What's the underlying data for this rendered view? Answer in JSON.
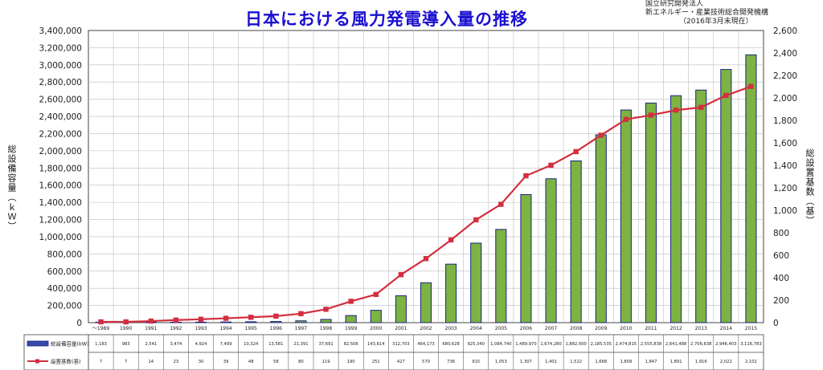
{
  "header": {
    "title": "日本における風力発電導入量の推移",
    "source_line1": "国立研究開発法人",
    "source_line2": "新エネルギー・産業技術総合開発機構",
    "source_date": "（2016年3月末現在）"
  },
  "chart_data": {
    "type": "bar",
    "title": "日本における風力発電導入量の推移",
    "ylabel": "総設備容量（ｋＷ）",
    "y2label": "総設置基数（基）",
    "ylim": [
      0,
      3400000
    ],
    "y2lim": [
      0,
      2600
    ],
    "yticks": [
      "0",
      "200,000",
      "400,000",
      "600,000",
      "800,000",
      "1,000,000",
      "1,200,000",
      "1,400,000",
      "1,600,000",
      "1,800,000",
      "2,000,000",
      "2,200,000",
      "2,400,000",
      "2,600,000",
      "2,800,000",
      "3,000,000",
      "3,200,000",
      "3,400,000"
    ],
    "y2ticks": [
      "0",
      "200",
      "400",
      "600",
      "800",
      "1,000",
      "1,200",
      "1,400",
      "1,600",
      "1,800",
      "2,000",
      "2,200",
      "2,400",
      "2,600"
    ],
    "grid": true,
    "categories": [
      "～1989",
      "1990",
      "1991",
      "1992",
      "1993",
      "1994",
      "1995",
      "1996",
      "1997",
      "1998",
      "1999",
      "2000",
      "2001",
      "2002",
      "2003",
      "2004",
      "2005",
      "2006",
      "2007",
      "2008",
      "2009",
      "2010",
      "2011",
      "2012",
      "2013",
      "2014",
      "2015"
    ],
    "series": [
      {
        "name": "総設備容量(kW)",
        "kind": "bar",
        "axis": "left",
        "color": "#7cb342",
        "edge_color": "#1a237e",
        "values": [
          1183,
          983,
          2541,
          3474,
          4924,
          7499,
          10324,
          13581,
          21391,
          37691,
          82506,
          143614,
          312703,
          464173,
          680628,
          925340,
          1084740,
          1489970,
          1674280,
          1882000,
          2185535,
          2474815,
          2555838,
          2641488,
          2706638,
          2946403,
          3116783
        ],
        "labels": [
          "1,183",
          "983",
          "2,541",
          "3,474",
          "4,924",
          "7,499",
          "10,324",
          "13,581",
          "21,391",
          "37,691",
          "82,506",
          "143,614",
          "312,703",
          "464,173",
          "680,628",
          "925,340",
          "1,084,740",
          "1,489,970",
          "1,674,280",
          "1,882,000",
          "2,185,535",
          "2,474,815",
          "2,555,838",
          "2,641,488",
          "2,706,638",
          "2,946,403",
          "3,116,783"
        ]
      },
      {
        "name": "設置基数(基)",
        "kind": "line",
        "axis": "right",
        "color": "#d32f3f",
        "values": [
          7,
          7,
          14,
          23,
          30,
          39,
          48,
          58,
          80,
          119,
          190,
          251,
          427,
          570,
          736,
          915,
          1053,
          1307,
          1401,
          1522,
          1668,
          1809,
          1847,
          1891,
          1916,
          2022,
          2102
        ],
        "labels": [
          "7",
          "7",
          "14",
          "23",
          "30",
          "39",
          "48",
          "58",
          "80",
          "119",
          "190",
          "251",
          "427",
          "570",
          "736",
          "915",
          "1,053",
          "1,307",
          "1,401",
          "1,522",
          "1,668",
          "1,809",
          "1,847",
          "1,891",
          "1,916",
          "2,022",
          "2,102"
        ]
      }
    ]
  }
}
